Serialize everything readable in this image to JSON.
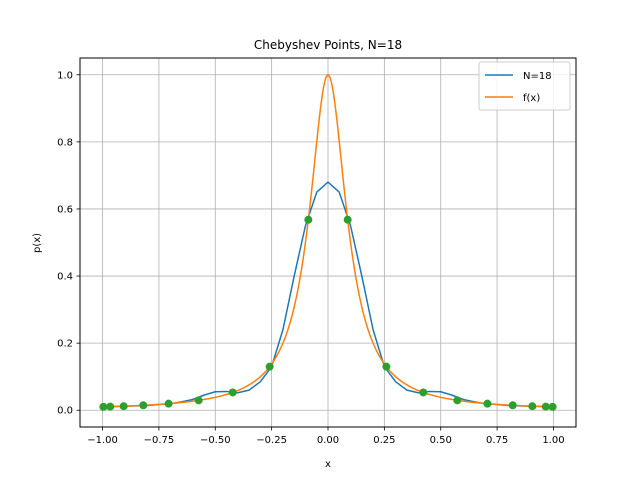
{
  "chart_data": {
    "type": "line",
    "title": "Chebyshev Points, N=18",
    "xlabel": "x",
    "ylabel": "p(x)",
    "xlim": [
      -1.1,
      1.1
    ],
    "ylim": [
      -0.05,
      1.05
    ],
    "grid": true,
    "legend_position": "top-right",
    "xticks": [
      -1.0,
      -0.75,
      -0.5,
      -0.25,
      0.0,
      0.25,
      0.5,
      0.75,
      1.0
    ],
    "xtick_labels": [
      "−1.00",
      "−0.75",
      "−0.50",
      "−0.25",
      "0.00",
      "0.25",
      "0.50",
      "0.75",
      "1.00"
    ],
    "yticks": [
      0.0,
      0.2,
      0.4,
      0.6,
      0.8,
      1.0
    ],
    "ytick_labels": [
      "0.0",
      "0.2",
      "0.4",
      "0.6",
      "0.8",
      "1.0"
    ],
    "series": [
      {
        "name": "N=18",
        "color": "#1f77b4",
        "x": [
          -1.0,
          -0.95,
          -0.9,
          -0.85,
          -0.8,
          -0.75,
          -0.7,
          -0.65,
          -0.6,
          -0.55,
          -0.5,
          -0.45,
          -0.4,
          -0.35,
          -0.3,
          -0.25,
          -0.2,
          -0.15,
          -0.1,
          -0.05,
          0.0,
          0.05,
          0.1,
          0.15,
          0.2,
          0.25,
          0.3,
          0.35,
          0.4,
          0.45,
          0.5,
          0.55,
          0.6,
          0.65,
          0.7,
          0.75,
          0.8,
          0.85,
          0.9,
          0.95,
          1.0
        ],
        "y": [
          0.01,
          0.011,
          0.012,
          0.013,
          0.014,
          0.017,
          0.019,
          0.025,
          0.032,
          0.045,
          0.055,
          0.056,
          0.052,
          0.06,
          0.085,
          0.13,
          0.24,
          0.4,
          0.55,
          0.65,
          0.68,
          0.65,
          0.55,
          0.4,
          0.24,
          0.13,
          0.085,
          0.06,
          0.052,
          0.056,
          0.055,
          0.045,
          0.032,
          0.025,
          0.019,
          0.017,
          0.014,
          0.013,
          0.012,
          0.011,
          0.01
        ]
      },
      {
        "name": "f(x)",
        "color": "#ff7f0e",
        "function": "1/(1+100x^2)"
      },
      {
        "name": "",
        "color": "#2ca02c",
        "markers_only": true,
        "x": [
          -0.9962,
          -0.9659,
          -0.9063,
          -0.8192,
          -0.7071,
          -0.5736,
          -0.4226,
          -0.2588,
          -0.0872,
          0.0872,
          0.2588,
          0.4226,
          0.5736,
          0.7071,
          0.8192,
          0.9063,
          0.9659,
          0.9962
        ],
        "y": [
          0.01,
          0.0106,
          0.012,
          0.0147,
          0.0196,
          0.0295,
          0.053,
          0.1299,
          0.568,
          0.568,
          0.1299,
          0.053,
          0.0295,
          0.0196,
          0.0147,
          0.012,
          0.0106,
          0.01
        ]
      }
    ]
  }
}
